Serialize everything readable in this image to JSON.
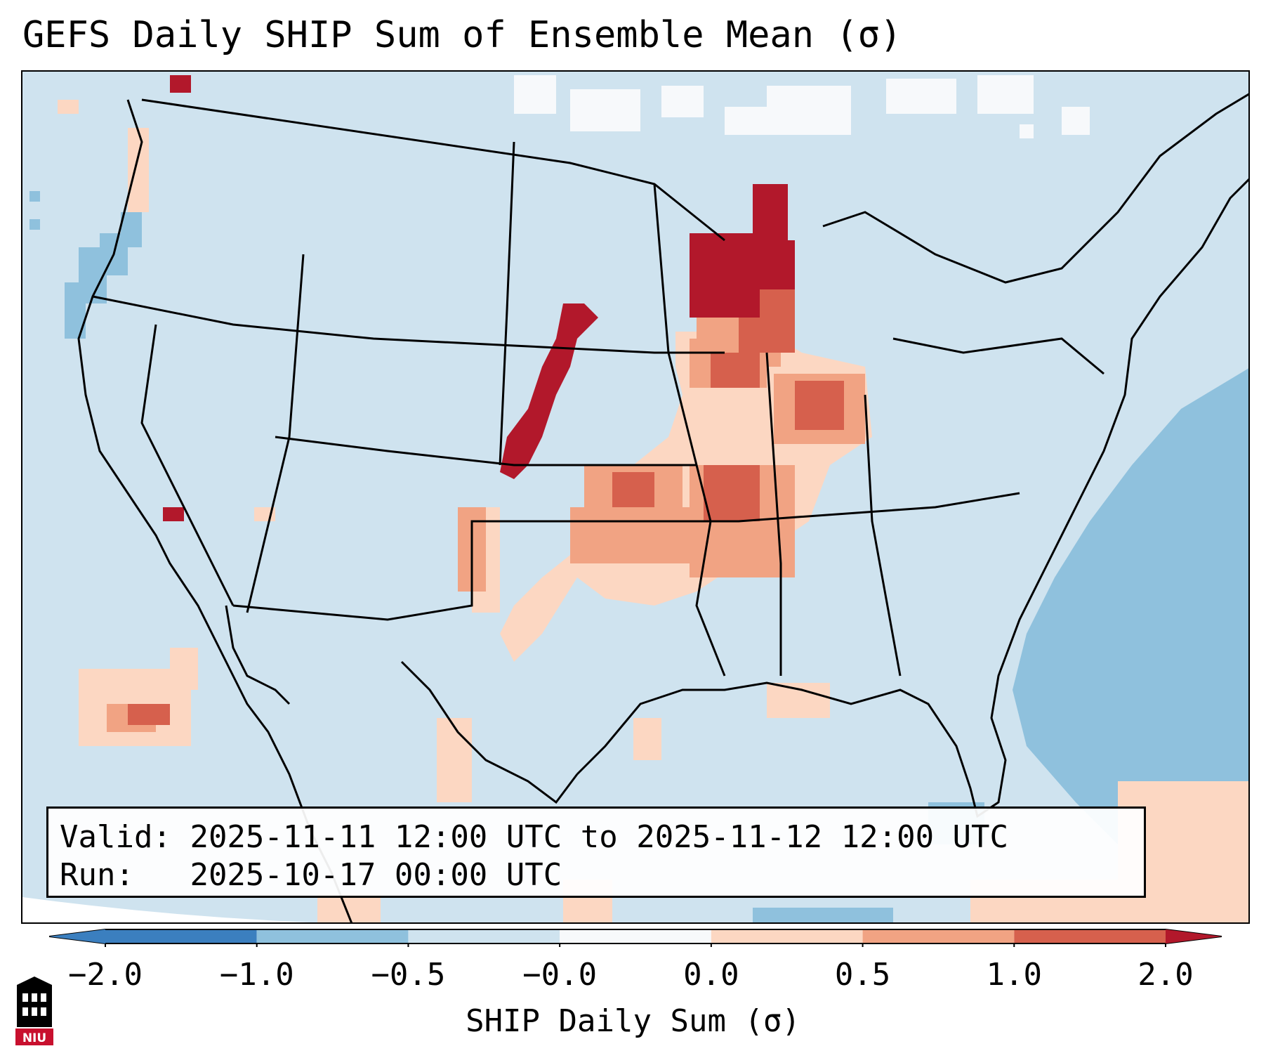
{
  "title": "GEFS Daily SHIP Sum of Ensemble Mean (σ)",
  "info": {
    "valid_label": "Valid:",
    "valid_value": "2025-11-11 12:00 UTC to 2025-11-12 12:00 UTC",
    "run_label": "Run:",
    "run_value": "2025-10-17 00:00 UTC"
  },
  "colorbar": {
    "label": "SHIP Daily Sum (σ)",
    "ticks": [
      "−2.0",
      "−1.0",
      "−0.5",
      "−0.0",
      "0.0",
      "0.5",
      "1.0",
      "2.0"
    ],
    "colors": [
      "#3b7fbf",
      "#8fc1dd",
      "#cfe3ef",
      "#f7f9fb",
      "#fcd7c2",
      "#f1a383",
      "#d6604d",
      "#b2182b"
    ]
  },
  "logo": {
    "text": "NIU"
  }
}
